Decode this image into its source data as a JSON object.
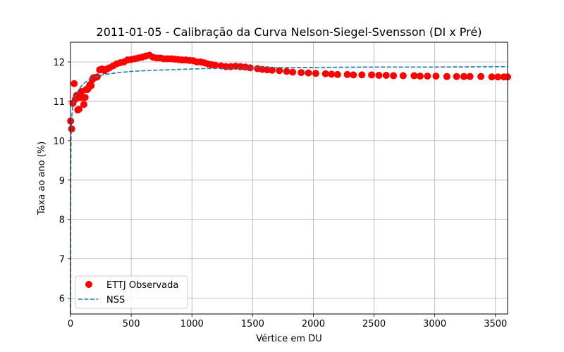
{
  "chart_data": {
    "type": "scatter+line",
    "title": "2011-01-05 - Calibração da Curva Nelson-Siegel-Svensson (DI x Pré)",
    "xlabel": "Vértice em DU",
    "ylabel": "Taxa ao ano (%)",
    "xlim": [
      0,
      3600
    ],
    "ylim": [
      5.6,
      12.5
    ],
    "xticks": [
      0,
      500,
      1000,
      1500,
      2000,
      2500,
      3000,
      3500
    ],
    "yticks": [
      6,
      7,
      8,
      9,
      10,
      11,
      12
    ],
    "xtick_labels": [
      "0",
      "500",
      "1000",
      "1500",
      "2000",
      "2500",
      "3000",
      "3500"
    ],
    "ytick_labels": [
      "6",
      "7",
      "8",
      "9",
      "10",
      "11",
      "12"
    ],
    "grid": true,
    "legend_position": "lower-left",
    "colors": {
      "observed": "#ff0000",
      "nss": "#1f77b4",
      "grid": "#b0b0b0"
    },
    "series": [
      {
        "name": "ETTJ Observada",
        "kind": "scatter",
        "points": [
          [
            1,
            10.5
          ],
          [
            10,
            10.3
          ],
          [
            20,
            10.95
          ],
          [
            30,
            11.45
          ],
          [
            40,
            11.05
          ],
          [
            50,
            11.15
          ],
          [
            60,
            10.78
          ],
          [
            70,
            10.8
          ],
          [
            80,
            11.1
          ],
          [
            90,
            11.25
          ],
          [
            100,
            11.1
          ],
          [
            110,
            10.92
          ],
          [
            120,
            11.1
          ],
          [
            130,
            11.3
          ],
          [
            140,
            11.3
          ],
          [
            150,
            11.35
          ],
          [
            160,
            11.42
          ],
          [
            170,
            11.4
          ],
          [
            180,
            11.55
          ],
          [
            190,
            11.6
          ],
          [
            200,
            11.6
          ],
          [
            220,
            11.62
          ],
          [
            240,
            11.8
          ],
          [
            260,
            11.82
          ],
          [
            280,
            11.78
          ],
          [
            300,
            11.82
          ],
          [
            320,
            11.85
          ],
          [
            350,
            11.9
          ],
          [
            380,
            11.95
          ],
          [
            410,
            11.98
          ],
          [
            440,
            12.0
          ],
          [
            470,
            12.05
          ],
          [
            500,
            12.06
          ],
          [
            530,
            12.08
          ],
          [
            560,
            12.1
          ],
          [
            590,
            12.12
          ],
          [
            620,
            12.15
          ],
          [
            650,
            12.17
          ],
          [
            680,
            12.12
          ],
          [
            710,
            12.1
          ],
          [
            740,
            12.1
          ],
          [
            770,
            12.08
          ],
          [
            800,
            12.08
          ],
          [
            830,
            12.08
          ],
          [
            860,
            12.07
          ],
          [
            890,
            12.06
          ],
          [
            920,
            12.05
          ],
          [
            950,
            12.05
          ],
          [
            980,
            12.04
          ],
          [
            1010,
            12.03
          ],
          [
            1040,
            12.0
          ],
          [
            1070,
            12.0
          ],
          [
            1100,
            11.98
          ],
          [
            1130,
            11.95
          ],
          [
            1160,
            11.93
          ],
          [
            1190,
            11.92
          ],
          [
            1240,
            11.9
          ],
          [
            1280,
            11.88
          ],
          [
            1320,
            11.88
          ],
          [
            1360,
            11.89
          ],
          [
            1400,
            11.88
          ],
          [
            1440,
            11.87
          ],
          [
            1480,
            11.85
          ],
          [
            1540,
            11.83
          ],
          [
            1580,
            11.81
          ],
          [
            1620,
            11.8
          ],
          [
            1660,
            11.79
          ],
          [
            1720,
            11.78
          ],
          [
            1780,
            11.76
          ],
          [
            1830,
            11.74
          ],
          [
            1900,
            11.73
          ],
          [
            1960,
            11.72
          ],
          [
            2020,
            11.71
          ],
          [
            2100,
            11.7
          ],
          [
            2150,
            11.69
          ],
          [
            2200,
            11.68
          ],
          [
            2280,
            11.68
          ],
          [
            2330,
            11.67
          ],
          [
            2400,
            11.67
          ],
          [
            2480,
            11.67
          ],
          [
            2540,
            11.66
          ],
          [
            2600,
            11.66
          ],
          [
            2660,
            11.65
          ],
          [
            2740,
            11.65
          ],
          [
            2830,
            11.65
          ],
          [
            2880,
            11.64
          ],
          [
            2940,
            11.64
          ],
          [
            3010,
            11.64
          ],
          [
            3100,
            11.63
          ],
          [
            3180,
            11.63
          ],
          [
            3240,
            11.63
          ],
          [
            3290,
            11.63
          ],
          [
            3380,
            11.63
          ],
          [
            3470,
            11.62
          ],
          [
            3520,
            11.62
          ],
          [
            3570,
            11.62
          ],
          [
            3600,
            11.62
          ]
        ]
      },
      {
        "name": "NSS",
        "kind": "line",
        "style": "dashed",
        "points": [
          [
            0,
            5.6
          ],
          [
            2,
            9.3
          ],
          [
            5,
            10.2
          ],
          [
            10,
            10.6
          ],
          [
            20,
            10.9
          ],
          [
            40,
            11.12
          ],
          [
            60,
            11.25
          ],
          [
            80,
            11.35
          ],
          [
            100,
            11.43
          ],
          [
            130,
            11.5
          ],
          [
            160,
            11.56
          ],
          [
            200,
            11.62
          ],
          [
            250,
            11.66
          ],
          [
            300,
            11.69
          ],
          [
            400,
            11.73
          ],
          [
            500,
            11.76
          ],
          [
            700,
            11.79
          ],
          [
            900,
            11.81
          ],
          [
            1100,
            11.83
          ],
          [
            1300,
            11.84
          ],
          [
            1500,
            11.85
          ],
          [
            2000,
            11.86
          ],
          [
            2500,
            11.87
          ],
          [
            3000,
            11.87
          ],
          [
            3600,
            11.88
          ]
        ]
      }
    ]
  }
}
